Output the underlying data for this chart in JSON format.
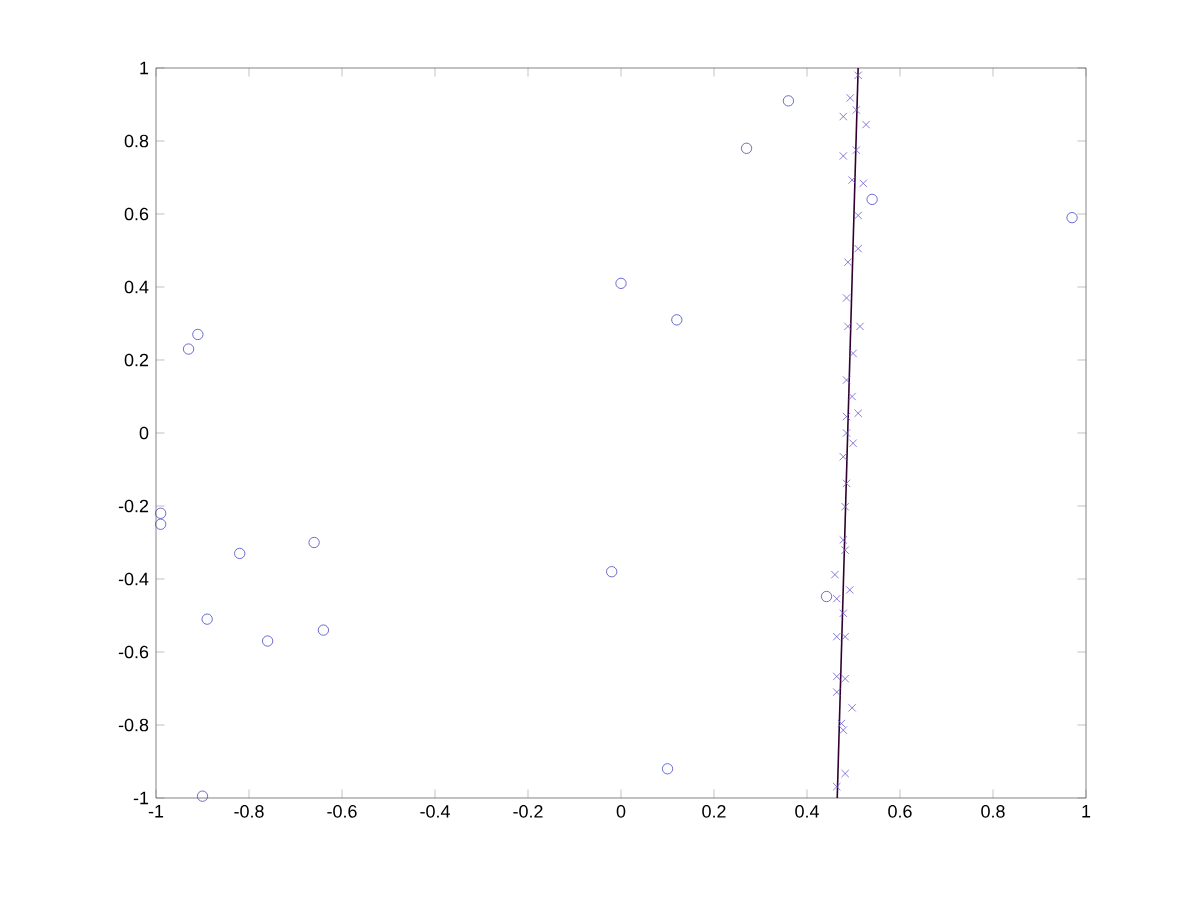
{
  "chart_data": {
    "type": "scatter",
    "xlim": [
      -1,
      1
    ],
    "ylim": [
      -1,
      1
    ],
    "xticks": [
      -1,
      -0.8,
      -0.6,
      -0.4,
      -0.2,
      0,
      0.2,
      0.4,
      0.6,
      0.8,
      1
    ],
    "yticks": [
      -1,
      -0.8,
      -0.6,
      -0.4,
      -0.2,
      0,
      0.2,
      0.4,
      0.6,
      0.8,
      1
    ],
    "grid": false,
    "series": [
      {
        "marker": "circle",
        "color": "#4848c8",
        "x": [
          -0.93,
          -0.91,
          -0.99,
          -0.99,
          -0.82,
          -0.66,
          -0.89,
          -0.76,
          -0.64,
          -0.9,
          -0.02,
          0.1,
          0.0,
          0.12,
          0.27,
          0.36,
          0.54,
          0.97,
          0.442
        ],
        "values": [
          0.23,
          0.27,
          -0.22,
          -0.25,
          -0.33,
          -0.3,
          -0.51,
          -0.57,
          -0.54,
          -0.995,
          -0.38,
          -0.92,
          0.41,
          0.31,
          0.78,
          0.91,
          0.64,
          0.59,
          -0.448
        ]
      },
      {
        "marker": "cross",
        "color": "#6a5acd",
        "x": [
          0.51,
          0.493,
          0.478,
          0.506,
          0.527,
          0.506,
          0.478,
          0.497,
          0.521,
          0.51,
          0.51,
          0.488,
          0.485,
          0.488,
          0.514,
          0.499,
          0.485,
          0.497,
          0.51,
          0.485,
          0.485,
          0.499,
          0.478,
          0.485,
          0.482,
          0.478,
          0.482,
          0.46,
          0.492,
          0.464,
          0.478,
          0.464,
          0.482,
          0.464,
          0.482,
          0.464,
          0.497,
          0.474,
          0.478,
          0.482,
          0.464
        ],
        "values": [
          0.98,
          0.918,
          0.867,
          0.885,
          0.845,
          0.775,
          0.759,
          0.693,
          0.684,
          0.596,
          0.505,
          0.468,
          0.37,
          0.292,
          0.292,
          0.218,
          0.145,
          0.1,
          0.054,
          0.045,
          0.0,
          -0.028,
          -0.065,
          -0.138,
          -0.202,
          -0.293,
          -0.321,
          -0.388,
          -0.43,
          -0.454,
          -0.494,
          -0.558,
          -0.558,
          -0.667,
          -0.673,
          -0.71,
          -0.753,
          -0.796,
          -0.814,
          -0.933,
          -0.969
        ]
      },
      {
        "type": "line",
        "marker": "none",
        "line_style": "solid",
        "color": "#300030",
        "x": [
          0.465,
          0.51
        ],
        "values": [
          -1,
          1
        ]
      }
    ]
  }
}
